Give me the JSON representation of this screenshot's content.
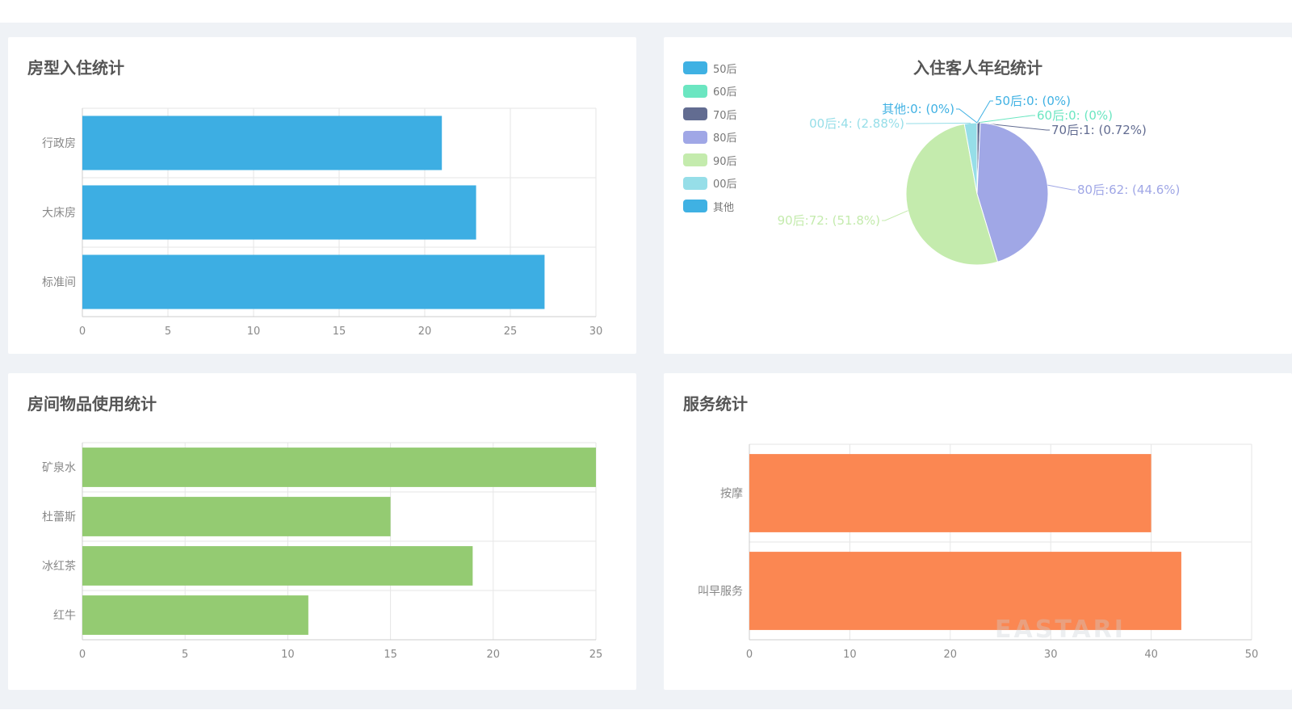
{
  "colors": {
    "blue_bar": "#3daee3",
    "green_bar": "#94cb72",
    "orange_bar": "#fb8752",
    "grid": "#e6e6e6",
    "axis": "#cccccc",
    "label": "#888888"
  },
  "charts": {
    "room_type": {
      "title": "房型入住统计"
    },
    "age": {
      "title": "入住客人年纪统计"
    },
    "items": {
      "title": "房间物品使用统计"
    },
    "service": {
      "title": "服务统计"
    }
  },
  "watermark": "EASTARI",
  "chart_data": [
    {
      "id": "room_type",
      "type": "bar",
      "orientation": "horizontal",
      "title": "房型入住统计",
      "categories": [
        "行政房",
        "大床房",
        "标准间"
      ],
      "values": [
        21,
        23,
        27
      ],
      "xlim": [
        0,
        30
      ],
      "ticks": [
        0,
        5,
        10,
        15,
        20,
        25,
        30
      ],
      "color": "#3daee3",
      "grid": true
    },
    {
      "id": "age",
      "type": "pie",
      "title": "入住客人年纪统计",
      "legend": "top-left",
      "slices": [
        {
          "name": "50后",
          "value": 0,
          "label": "50后:0: (0%)",
          "color": "#3fb1e3"
        },
        {
          "name": "60后",
          "value": 0,
          "label": "60后:0: (0%)",
          "color": "#6be6c1"
        },
        {
          "name": "70后",
          "value": 1,
          "label": "70后:1: (0.72%)",
          "color": "#626c91"
        },
        {
          "name": "80后",
          "value": 62,
          "label": "80后:62: (44.6%)",
          "color": "#a0a7e6"
        },
        {
          "name": "90后",
          "value": 72,
          "label": "90后:72: (51.8%)",
          "color": "#c4ebad"
        },
        {
          "name": "00后",
          "value": 4,
          "label": "00后:4: (2.88%)",
          "color": "#96dee8"
        },
        {
          "name": "其他",
          "value": 0,
          "label": "其他:0: (0%)",
          "color": "#3fb1e3"
        }
      ]
    },
    {
      "id": "items",
      "type": "bar",
      "orientation": "horizontal",
      "title": "房间物品使用统计",
      "categories": [
        "矿泉水",
        "杜蕾斯",
        "冰红茶",
        "红牛"
      ],
      "values": [
        25,
        15,
        19,
        11
      ],
      "xlim": [
        0,
        25
      ],
      "ticks": [
        0,
        5,
        10,
        15,
        20,
        25
      ],
      "color": "#94cb72",
      "grid": true
    },
    {
      "id": "service",
      "type": "bar",
      "orientation": "horizontal",
      "title": "服务统计",
      "categories": [
        "按摩",
        "叫早服务"
      ],
      "values": [
        40,
        43
      ],
      "xlim": [
        0,
        50
      ],
      "ticks": [
        0,
        10,
        20,
        30,
        40,
        50
      ],
      "color": "#fb8752",
      "grid": true
    }
  ]
}
